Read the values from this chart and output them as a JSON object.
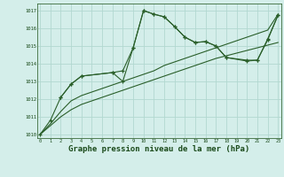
{
  "bg_color": "#d4eeea",
  "grid_color": "#b2d8d0",
  "line_color": "#2a5f2a",
  "xlabel": "Graphe pression niveau de la mer (hPa)",
  "xlabel_fontsize": 6.5,
  "ylim": [
    1009.8,
    1017.4
  ],
  "xlim": [
    -0.3,
    23.3
  ],
  "yticks": [
    1010,
    1011,
    1012,
    1013,
    1014,
    1015,
    1016,
    1017
  ],
  "xticks": [
    0,
    1,
    2,
    3,
    4,
    5,
    6,
    7,
    8,
    9,
    10,
    11,
    12,
    13,
    14,
    15,
    16,
    17,
    18,
    19,
    20,
    21,
    22,
    23
  ],
  "s1x": [
    0,
    1,
    2,
    3,
    4,
    5,
    6,
    7,
    8,
    9,
    10,
    11,
    12,
    13,
    14,
    15,
    16,
    17,
    18,
    19,
    20,
    21,
    22,
    23
  ],
  "s1y": [
    1010.0,
    1010.5,
    1011.0,
    1011.4,
    1011.7,
    1011.9,
    1012.1,
    1012.3,
    1012.5,
    1012.7,
    1012.9,
    1013.1,
    1013.3,
    1013.5,
    1013.7,
    1013.9,
    1014.1,
    1014.3,
    1014.45,
    1014.6,
    1014.75,
    1014.9,
    1015.05,
    1015.2
  ],
  "s2x": [
    0,
    1,
    2,
    3,
    4,
    5,
    6,
    7,
    8,
    9,
    10,
    11,
    12,
    13,
    14,
    15,
    16,
    17,
    18,
    19,
    20,
    21,
    22,
    23
  ],
  "s2y": [
    1010.0,
    1010.6,
    1011.3,
    1011.9,
    1012.2,
    1012.4,
    1012.6,
    1012.8,
    1013.0,
    1013.2,
    1013.4,
    1013.6,
    1013.9,
    1014.1,
    1014.3,
    1014.5,
    1014.7,
    1014.9,
    1015.1,
    1015.3,
    1015.5,
    1015.7,
    1015.9,
    1016.8
  ],
  "s3x": [
    0,
    1,
    2,
    3,
    4,
    7,
    8,
    9,
    10,
    11,
    12,
    13,
    14,
    15,
    16,
    17,
    18,
    20,
    21,
    22,
    23
  ],
  "s3y": [
    1010.0,
    1010.8,
    1012.1,
    1012.85,
    1013.3,
    1013.5,
    1013.6,
    1014.9,
    1017.0,
    1016.8,
    1016.65,
    1016.1,
    1015.5,
    1015.2,
    1015.25,
    1015.0,
    1014.35,
    1014.2,
    1014.2,
    1015.4,
    1016.75
  ],
  "s4x": [
    2,
    3,
    4,
    7,
    8,
    9,
    10,
    11,
    12,
    13,
    14,
    15,
    16,
    17,
    18,
    20,
    21,
    22,
    23
  ],
  "s4y": [
    1012.1,
    1012.85,
    1013.3,
    1013.5,
    1013.0,
    1014.9,
    1017.0,
    1016.8,
    1016.65,
    1016.1,
    1015.5,
    1015.2,
    1015.25,
    1015.0,
    1014.35,
    1014.15,
    1014.2,
    1015.35,
    1016.75
  ]
}
